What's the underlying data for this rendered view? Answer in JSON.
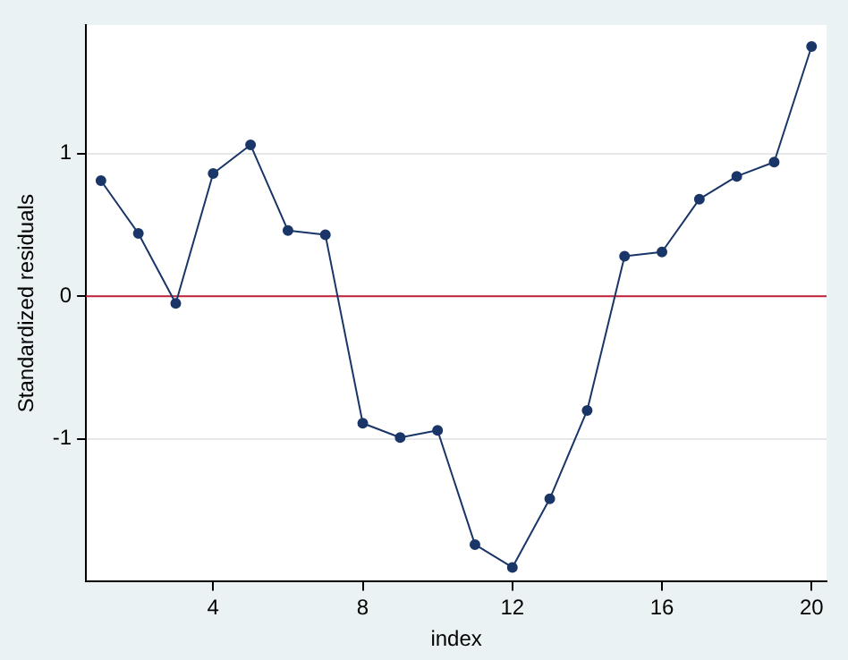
{
  "chart_data": {
    "type": "line",
    "xlabel": "index",
    "ylabel": "Standardized residuals",
    "x": [
      1,
      2,
      3,
      4,
      5,
      6,
      7,
      8,
      9,
      10,
      11,
      12,
      13,
      14,
      15,
      16,
      17,
      18,
      19,
      20
    ],
    "series": [
      {
        "color": "#1a3668",
        "values": [
          0.81,
          0.44,
          -0.05,
          0.86,
          1.06,
          0.46,
          0.43,
          -0.89,
          -0.99,
          -0.94,
          -1.74,
          -1.9,
          -1.42,
          -0.8,
          0.28,
          0.31,
          0.68,
          0.84,
          0.94,
          1.75
        ]
      }
    ],
    "xlim": [
      0.6,
      20.4
    ],
    "xticks": [
      4,
      8,
      12,
      16,
      20
    ],
    "ylim": [
      -2,
      1.9
    ],
    "yticks": [
      -1,
      0,
      1
    ],
    "grid": "y",
    "marker": "circle",
    "line_style": "solid",
    "legend": false,
    "ref_lines": [
      {
        "axis": "y",
        "value": 0,
        "color": "#c0223a"
      }
    ]
  }
}
